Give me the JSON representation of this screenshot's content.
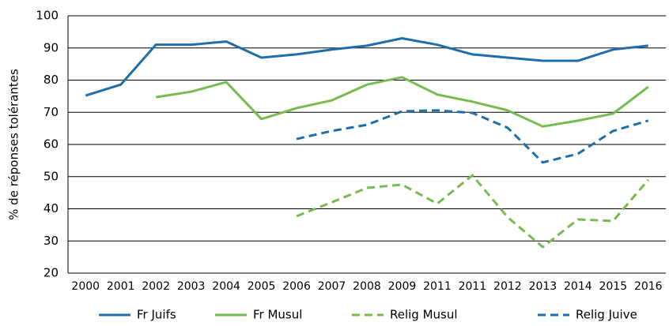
{
  "chart_data": {
    "type": "line",
    "y_label": "% de  réponses tolérantes",
    "categories": [
      "2000",
      "2001",
      "2002",
      "2003",
      "2004",
      "2005",
      "2006",
      "2007",
      "2008",
      "2009",
      "2011",
      "2011",
      "2012",
      "2013",
      "2014",
      "2015",
      "2016"
    ],
    "series": [
      {
        "name": "Fr Juifs",
        "color": "#1f6eaa",
        "dashed": false,
        "values": [
          75.2,
          78.6,
          91,
          91,
          92,
          87,
          88,
          89.5,
          90.7,
          93,
          91,
          88,
          87,
          86,
          86,
          89.5,
          90.7
        ]
      },
      {
        "name": "Fr Musul",
        "color": "#77bb4f",
        "dashed": false,
        "values": [
          null,
          null,
          74.7,
          76.4,
          79.4,
          67.9,
          71.3,
          73.7,
          78.6,
          80.9,
          75.5,
          73.3,
          70.6,
          65.6,
          67.4,
          69.6,
          77.9
        ]
      },
      {
        "name": "Relig Musul",
        "color": "#77bb4f",
        "dashed": true,
        "values": [
          null,
          null,
          null,
          null,
          null,
          null,
          37.7,
          42,
          46.5,
          47.5,
          41.6,
          50.4,
          37.4,
          28.1,
          36.7,
          36.2,
          49
        ]
      },
      {
        "name": "Relig Juive",
        "color": "#1f6eaa",
        "dashed": true,
        "values": [
          null,
          null,
          null,
          null,
          null,
          null,
          61.7,
          64.2,
          66.1,
          70.3,
          70.6,
          69.8,
          65.2,
          54.4,
          57.1,
          64.2,
          67.4
        ]
      }
    ],
    "ylim": [
      20,
      100
    ],
    "yticks": [
      20,
      30,
      40,
      50,
      60,
      70,
      80,
      90,
      100
    ],
    "grid": true
  }
}
